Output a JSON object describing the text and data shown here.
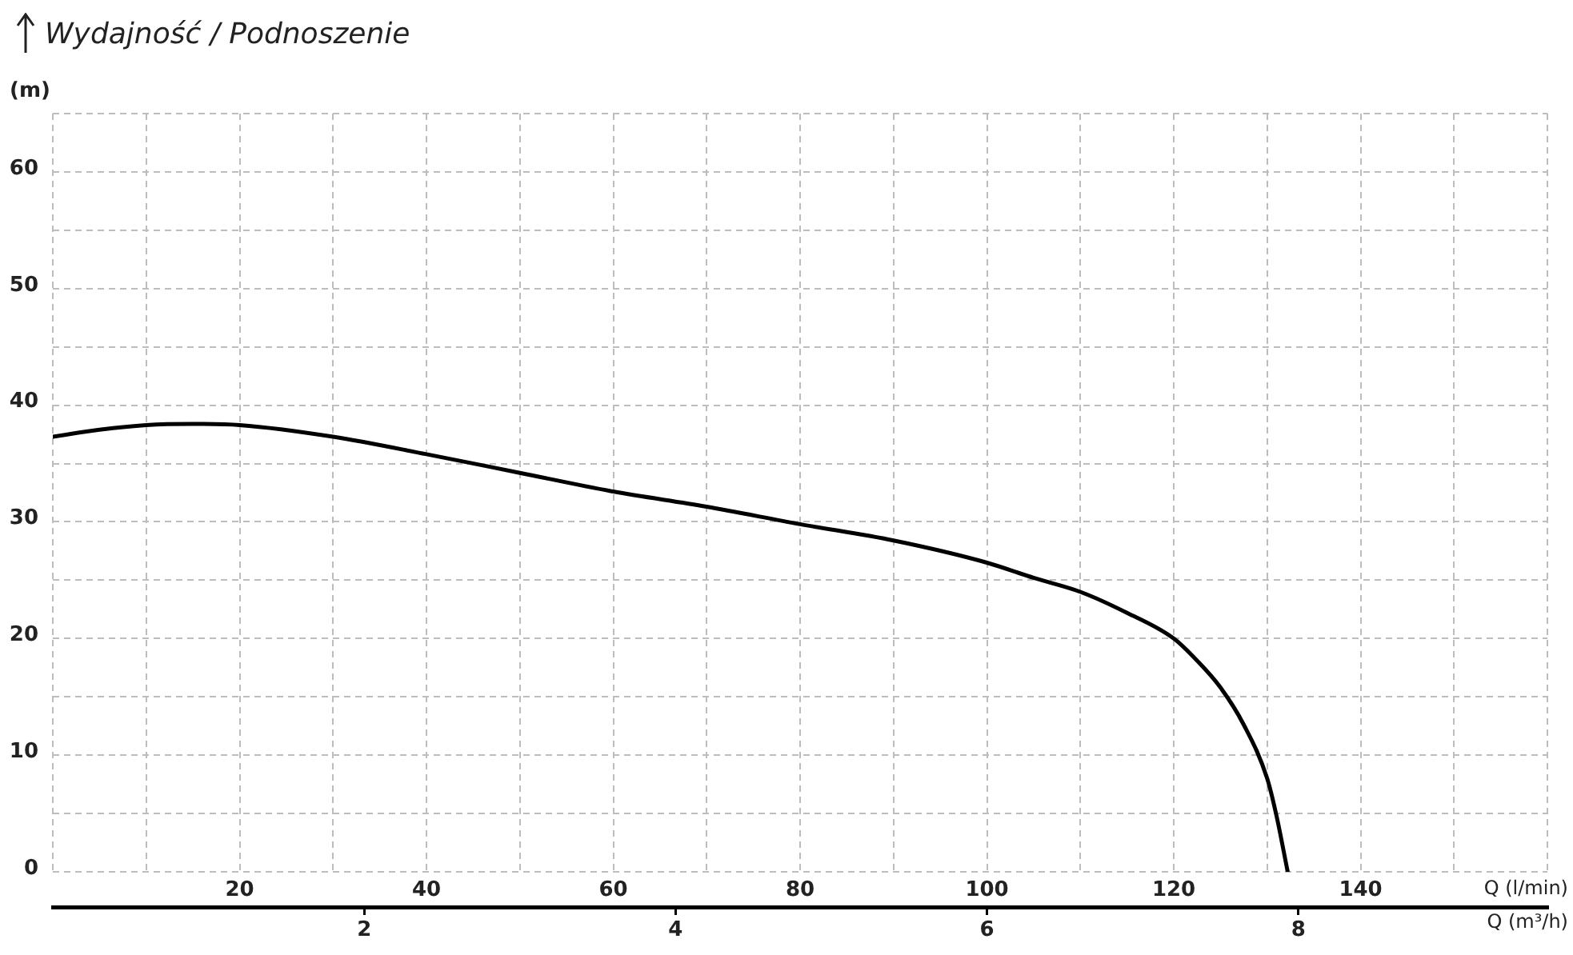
{
  "chart_data": {
    "type": "line",
    "title": "Wydajność / Podnoszenie",
    "ylabel": "(m)",
    "xlabel": "Q (l/min)",
    "x2label": "Q (m³/h)",
    "x": [
      0,
      5,
      10,
      15,
      20,
      30,
      40,
      50,
      60,
      70,
      80,
      90,
      100,
      105,
      110,
      115,
      120,
      122.5,
      125,
      127.5,
      130,
      131,
      132.2
    ],
    "series": [
      {
        "color": "#000000",
        "values": [
          37.3,
          37.9,
          38.3,
          38.4,
          38.3,
          37.3,
          35.8,
          34.2,
          32.6,
          31.3,
          29.8,
          28.4,
          26.5,
          25.2,
          24.0,
          22.2,
          20.0,
          18.1,
          15.8,
          12.6,
          8.0,
          4.8,
          0
        ]
      }
    ],
    "xlim": [
      0,
      160
    ],
    "xticks": [
      {
        "value": 0,
        "label": null
      },
      {
        "value": 10,
        "label": null
      },
      20,
      {
        "value": 30,
        "label": null
      },
      40,
      {
        "value": 50,
        "label": null
      },
      60,
      {
        "value": 70,
        "label": null
      },
      80,
      {
        "value": 90,
        "label": null
      },
      100,
      {
        "value": 110,
        "label": null
      },
      120,
      {
        "value": 130,
        "label": null
      },
      140,
      {
        "value": 150,
        "label": null
      },
      {
        "value": 160,
        "label": null
      }
    ],
    "x2lim": [
      0,
      9.6
    ],
    "x2ticks": [
      2,
      4,
      6,
      8
    ],
    "ylim": [
      0,
      65
    ],
    "yticks": [
      0,
      {
        "value": 5,
        "label": null
      },
      10,
      {
        "value": 15,
        "label": null
      },
      20,
      {
        "value": 25,
        "label": null
      },
      30,
      {
        "value": 35,
        "label": null
      },
      40,
      {
        "value": 45,
        "label": null
      },
      50,
      {
        "value": 55,
        "label": null
      },
      60,
      {
        "value": 65,
        "label": null
      }
    ],
    "grid": true,
    "legend": false,
    "marker": "none",
    "line_style": "solid"
  }
}
